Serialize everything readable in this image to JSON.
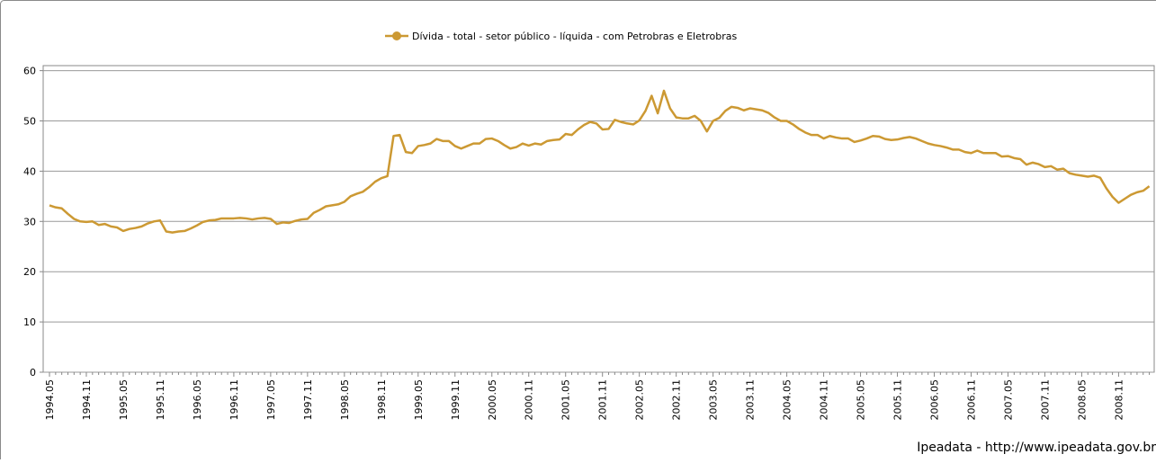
{
  "chart_data": {
    "type": "line",
    "source": "Ipeadata - http://www.ipeadata.gov.br",
    "categories": [
      "1994.05",
      null,
      null,
      null,
      null,
      null,
      "1994.11",
      null,
      null,
      null,
      null,
      null,
      "1995.05",
      null,
      null,
      null,
      null,
      null,
      "1995.11",
      null,
      null,
      null,
      null,
      null,
      "1996.05",
      null,
      null,
      null,
      null,
      null,
      "1996.11",
      null,
      null,
      null,
      null,
      null,
      "1997.05",
      null,
      null,
      null,
      null,
      null,
      "1997.11",
      null,
      null,
      null,
      null,
      null,
      "1998.05",
      null,
      null,
      null,
      null,
      null,
      "1998.11",
      null,
      null,
      null,
      null,
      null,
      "1999.05",
      null,
      null,
      null,
      null,
      null,
      "1999.11",
      null,
      null,
      null,
      null,
      null,
      "2000.05",
      null,
      null,
      null,
      null,
      null,
      "2000.11",
      null,
      null,
      null,
      null,
      null,
      "2001.05",
      null,
      null,
      null,
      null,
      null,
      "2001.11",
      null,
      null,
      null,
      null,
      null,
      "2002.05",
      null,
      null,
      null,
      null,
      null,
      "2002.11",
      null,
      null,
      null,
      null,
      null,
      "2003.05",
      null,
      null,
      null,
      null,
      null,
      "2003.11",
      null,
      null,
      null,
      null,
      null,
      "2004.05",
      null,
      null,
      null,
      null,
      null,
      "2004.11",
      null,
      null,
      null,
      null,
      null,
      "2005.05",
      null,
      null,
      null,
      null,
      null,
      "2005.11",
      null,
      null,
      null,
      null,
      null,
      "2006.05",
      null,
      null,
      null,
      null,
      null,
      "2006.11",
      null,
      null,
      null,
      null,
      null,
      "2007.05",
      null,
      null,
      null,
      null,
      null,
      "2007.11",
      null,
      null,
      null,
      null,
      null,
      "2008.05",
      null,
      null,
      null,
      null,
      null,
      "2008.11",
      null,
      null,
      null,
      null,
      null
    ],
    "series": [
      {
        "name": "Dívida - total - setor público - líquida - com Petrobras e Eletrobras",
        "color": "#cc9933",
        "values": [
          33.2,
          32.8,
          32.6,
          31.5,
          30.5,
          30.0,
          29.9,
          30.0,
          29.3,
          29.5,
          29.0,
          28.8,
          28.1,
          28.5,
          28.7,
          29.0,
          29.6,
          30.0,
          30.2,
          28.0,
          27.8,
          28.0,
          28.1,
          28.6,
          29.2,
          29.9,
          30.2,
          30.3,
          30.6,
          30.6,
          30.6,
          30.7,
          30.6,
          30.4,
          30.6,
          30.7,
          30.5,
          29.5,
          29.8,
          29.7,
          30.1,
          30.4,
          30.5,
          31.7,
          32.3,
          33.0,
          33.2,
          33.4,
          33.9,
          35.0,
          35.5,
          35.9,
          36.8,
          37.9,
          38.6,
          39.0,
          47.0,
          47.2,
          43.8,
          43.6,
          45.0,
          45.2,
          45.5,
          46.4,
          46.0,
          46.0,
          45.0,
          44.5,
          45.0,
          45.5,
          45.5,
          46.4,
          46.5,
          46.0,
          45.2,
          44.5,
          44.8,
          45.5,
          45.1,
          45.5,
          45.3,
          46.0,
          46.2,
          46.3,
          47.4,
          47.2,
          48.3,
          49.2,
          49.8,
          49.5,
          48.3,
          48.4,
          50.2,
          49.8,
          49.5,
          49.3,
          50.1,
          52.0,
          55.0,
          51.5,
          56.0,
          52.5,
          50.7,
          50.5,
          50.5,
          51.0,
          50.0,
          47.9,
          50.0,
          50.6,
          52.0,
          52.8,
          52.6,
          52.1,
          52.5,
          52.3,
          52.1,
          51.6,
          50.7,
          50.0,
          50.0,
          49.3,
          48.4,
          47.7,
          47.2,
          47.2,
          46.5,
          47.0,
          46.7,
          46.5,
          46.5,
          45.8,
          46.1,
          46.5,
          47.0,
          46.9,
          46.4,
          46.2,
          46.3,
          46.6,
          46.8,
          46.5,
          46.0,
          45.5,
          45.2,
          45.0,
          44.7,
          44.3,
          44.3,
          43.8,
          43.6,
          44.1,
          43.6,
          43.6,
          43.6,
          42.9,
          43.0,
          42.6,
          42.4,
          41.3,
          41.7,
          41.4,
          40.8,
          41.0,
          40.3,
          40.5,
          39.6,
          39.3,
          39.1,
          38.9,
          39.1,
          38.7,
          36.6,
          34.9,
          33.7,
          34.5,
          35.3,
          35.8,
          36.1,
          37.0
        ]
      }
    ],
    "ylim": [
      0,
      61
    ],
    "yticks": [
      0,
      10,
      20,
      30,
      40,
      50,
      60
    ],
    "grid": true,
    "legend": "top"
  }
}
